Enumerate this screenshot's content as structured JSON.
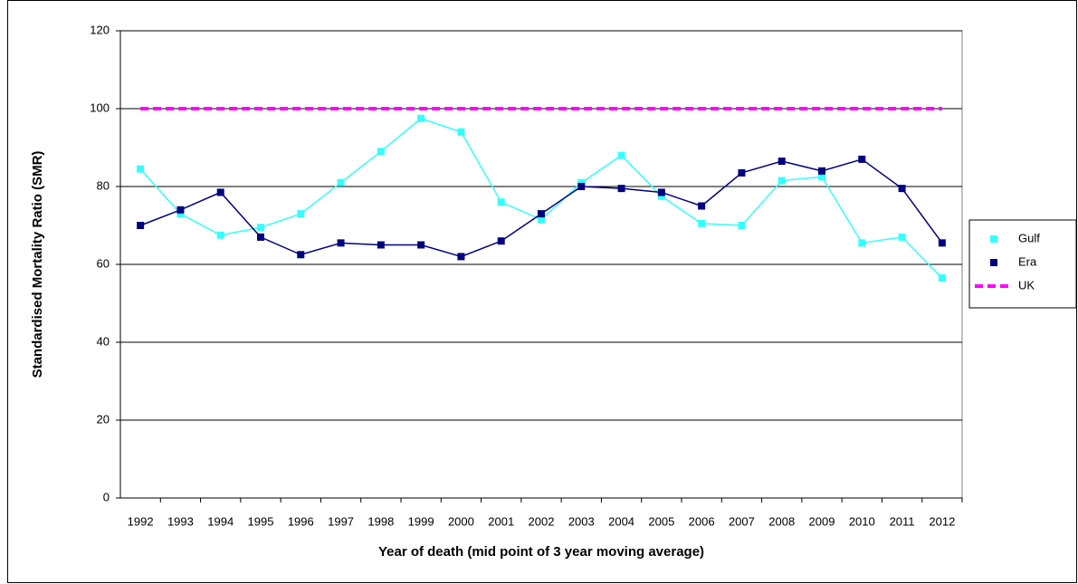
{
  "chart_data": {
    "type": "line",
    "x_label": "Year of death (mid point of 3 year moving average)",
    "y_label": "Standardised Mortality Ratio (SMR)",
    "categories": [
      "1992",
      "1993",
      "1994",
      "1995",
      "1996",
      "1997",
      "1998",
      "1999",
      "2000",
      "2001",
      "2002",
      "2003",
      "2004",
      "2005",
      "2006",
      "2007",
      "2008",
      "2009",
      "2010",
      "2011",
      "2012"
    ],
    "series": [
      {
        "name": "Gulf",
        "color": "#33ffff",
        "marker": "square",
        "values": [
          84.5,
          73,
          67.5,
          69.5,
          73,
          81,
          89,
          97.5,
          94,
          76,
          71.5,
          81,
          88,
          77.5,
          70.5,
          70,
          81.5,
          82.5,
          65.5,
          67,
          56.5
        ]
      },
      {
        "name": "Era",
        "color": "#000080",
        "marker": "square",
        "values": [
          70,
          74,
          78.5,
          67,
          62.5,
          65.5,
          65,
          65,
          62,
          66,
          73,
          80,
          79.5,
          78.5,
          75,
          83.5,
          86.5,
          84,
          87,
          79.5,
          65.5
        ]
      },
      {
        "name": "UK",
        "color": "#ff00ff",
        "dashed": true,
        "values": [
          100,
          100,
          100,
          100,
          100,
          100,
          100,
          100,
          100,
          100,
          100,
          100,
          100,
          100,
          100,
          100,
          100,
          100,
          100,
          100,
          100
        ]
      }
    ],
    "ylim": [
      0,
      120
    ],
    "yticks": [
      0,
      20,
      40,
      60,
      80,
      100,
      120
    ],
    "grid": true,
    "legend": "right"
  }
}
